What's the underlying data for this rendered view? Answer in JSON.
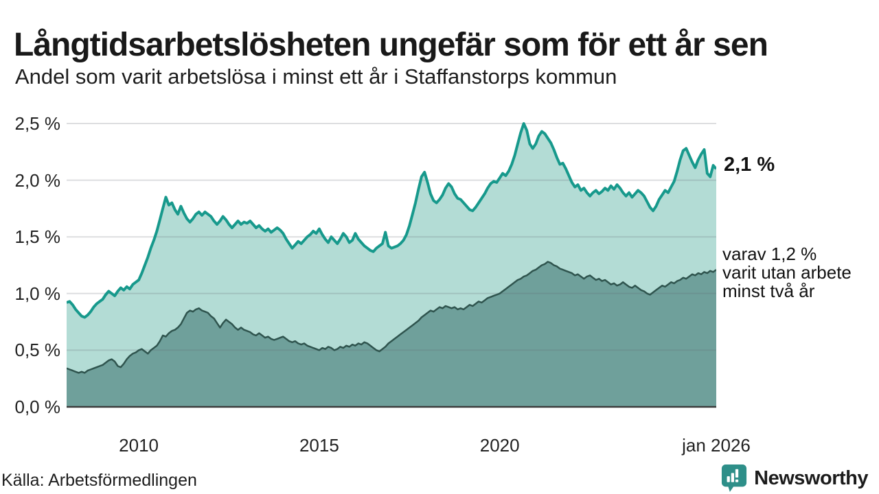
{
  "header": {
    "title": "Långtidsarbetslösheten ungefär som för ett år sen",
    "subtitle": "Andel som varit arbetslösa i minst ett år i Staffanstorps kommun"
  },
  "annotations": {
    "total_label": "2,1 %",
    "secondary_line1": "varav 1,2 %",
    "secondary_line2": "varit utan arbete",
    "secondary_line3": "minst två år"
  },
  "footer": {
    "source": "Källa: Arbetsförmedlingen",
    "brand_name": "Newsworthy"
  },
  "colors": {
    "total_line": "#17998c",
    "total_fill": "#b3dcd5",
    "secondary_line": "#2f544e",
    "secondary_fill": "#6fa09b",
    "gridline_overlay": "rgba(100,105,115,0.22)",
    "baseline": "#3c3c3c",
    "brand_teal": "#2e8f89",
    "text": "#1c1c1c"
  },
  "chart_data": {
    "type": "area",
    "title": "Långtidsarbetslösheten ungefär som för ett år sen",
    "subtitle": "Andel som varit arbetslösa i minst ett år i Staffanstorps kommun",
    "unit": "percent",
    "interval": "monthly",
    "start": "2008-01",
    "end": "2026-01",
    "ylim": [
      0,
      2.5
    ],
    "grid": true,
    "legend_position": "right-annotations",
    "y_ticks": [
      {
        "value": 2.5,
        "label": "2,5 %"
      },
      {
        "value": 2.0,
        "label": "2,0 %"
      },
      {
        "value": 1.5,
        "label": "1,5 %"
      },
      {
        "value": 1.0,
        "label": "1,0 %"
      },
      {
        "value": 0.5,
        "label": "0,5 %"
      },
      {
        "value": 0.0,
        "label": "0,0 %"
      }
    ],
    "x_ticks": [
      {
        "label": "2010",
        "pos": 0.1111
      },
      {
        "label": "2015",
        "pos": 0.3889
      },
      {
        "label": "2020",
        "pos": 0.6667
      },
      {
        "label": "jan 2026",
        "pos": 1.0
      }
    ],
    "series": [
      {
        "name": "Arbetslösa minst ett år",
        "end_value_label": "2,1 %",
        "color": "#17998c",
        "fill": "#b3dcd5",
        "stroke_width": 4,
        "values": [
          0.92,
          0.93,
          0.9,
          0.86,
          0.83,
          0.8,
          0.79,
          0.81,
          0.84,
          0.88,
          0.91,
          0.93,
          0.95,
          0.99,
          1.02,
          1.0,
          0.98,
          1.02,
          1.05,
          1.03,
          1.06,
          1.04,
          1.08,
          1.1,
          1.12,
          1.18,
          1.25,
          1.32,
          1.4,
          1.47,
          1.55,
          1.65,
          1.75,
          1.85,
          1.78,
          1.8,
          1.74,
          1.7,
          1.77,
          1.71,
          1.66,
          1.63,
          1.66,
          1.7,
          1.72,
          1.69,
          1.72,
          1.7,
          1.68,
          1.64,
          1.61,
          1.64,
          1.68,
          1.65,
          1.61,
          1.58,
          1.61,
          1.64,
          1.61,
          1.63,
          1.62,
          1.64,
          1.61,
          1.58,
          1.6,
          1.57,
          1.55,
          1.57,
          1.54,
          1.56,
          1.58,
          1.56,
          1.53,
          1.48,
          1.44,
          1.4,
          1.43,
          1.46,
          1.44,
          1.47,
          1.5,
          1.52,
          1.55,
          1.53,
          1.57,
          1.52,
          1.48,
          1.45,
          1.5,
          1.47,
          1.44,
          1.48,
          1.53,
          1.5,
          1.45,
          1.47,
          1.53,
          1.48,
          1.45,
          1.42,
          1.4,
          1.38,
          1.37,
          1.4,
          1.42,
          1.44,
          1.54,
          1.42,
          1.4,
          1.41,
          1.42,
          1.44,
          1.47,
          1.52,
          1.6,
          1.7,
          1.8,
          1.92,
          2.03,
          2.07,
          1.98,
          1.88,
          1.82,
          1.8,
          1.83,
          1.87,
          1.93,
          1.97,
          1.94,
          1.88,
          1.84,
          1.83,
          1.8,
          1.77,
          1.74,
          1.73,
          1.76,
          1.8,
          1.84,
          1.88,
          1.93,
          1.97,
          1.99,
          1.98,
          2.02,
          2.06,
          2.04,
          2.08,
          2.14,
          2.22,
          2.32,
          2.42,
          2.5,
          2.44,
          2.32,
          2.28,
          2.32,
          2.39,
          2.43,
          2.41,
          2.37,
          2.33,
          2.27,
          2.2,
          2.14,
          2.15,
          2.1,
          2.04,
          1.98,
          1.94,
          1.96,
          1.91,
          1.93,
          1.89,
          1.86,
          1.89,
          1.91,
          1.88,
          1.9,
          1.93,
          1.91,
          1.95,
          1.92,
          1.96,
          1.93,
          1.89,
          1.86,
          1.89,
          1.85,
          1.88,
          1.91,
          1.89,
          1.86,
          1.81,
          1.76,
          1.73,
          1.77,
          1.83,
          1.87,
          1.91,
          1.89,
          1.94,
          1.99,
          2.08,
          2.18,
          2.26,
          2.28,
          2.22,
          2.16,
          2.11,
          2.18,
          2.23,
          2.27,
          2.06,
          2.03,
          2.13,
          2.1
        ]
      },
      {
        "name": "varav utan arbete minst två år",
        "end_value_label": "1,2 %",
        "color": "#2f544e",
        "fill": "#6fa09b",
        "stroke_width": 2.5,
        "values": [
          0.34,
          0.33,
          0.32,
          0.31,
          0.3,
          0.31,
          0.3,
          0.32,
          0.33,
          0.34,
          0.35,
          0.36,
          0.37,
          0.39,
          0.41,
          0.42,
          0.4,
          0.36,
          0.35,
          0.38,
          0.42,
          0.45,
          0.47,
          0.48,
          0.5,
          0.51,
          0.49,
          0.47,
          0.5,
          0.52,
          0.54,
          0.58,
          0.63,
          0.62,
          0.65,
          0.67,
          0.68,
          0.7,
          0.73,
          0.78,
          0.83,
          0.85,
          0.84,
          0.86,
          0.87,
          0.85,
          0.84,
          0.83,
          0.8,
          0.78,
          0.74,
          0.7,
          0.74,
          0.77,
          0.75,
          0.73,
          0.7,
          0.68,
          0.7,
          0.68,
          0.67,
          0.66,
          0.64,
          0.63,
          0.65,
          0.63,
          0.61,
          0.62,
          0.6,
          0.59,
          0.6,
          0.61,
          0.62,
          0.6,
          0.58,
          0.57,
          0.58,
          0.56,
          0.55,
          0.56,
          0.54,
          0.53,
          0.52,
          0.51,
          0.5,
          0.52,
          0.51,
          0.53,
          0.52,
          0.5,
          0.51,
          0.53,
          0.52,
          0.54,
          0.53,
          0.55,
          0.54,
          0.56,
          0.55,
          0.57,
          0.56,
          0.54,
          0.52,
          0.5,
          0.49,
          0.51,
          0.53,
          0.56,
          0.58,
          0.6,
          0.62,
          0.64,
          0.66,
          0.68,
          0.7,
          0.72,
          0.74,
          0.76,
          0.79,
          0.81,
          0.83,
          0.85,
          0.84,
          0.86,
          0.88,
          0.87,
          0.89,
          0.88,
          0.87,
          0.88,
          0.86,
          0.87,
          0.86,
          0.88,
          0.9,
          0.89,
          0.91,
          0.93,
          0.92,
          0.94,
          0.96,
          0.97,
          0.98,
          0.99,
          1.0,
          1.02,
          1.04,
          1.06,
          1.08,
          1.1,
          1.12,
          1.13,
          1.15,
          1.16,
          1.18,
          1.2,
          1.21,
          1.23,
          1.25,
          1.26,
          1.28,
          1.27,
          1.25,
          1.24,
          1.22,
          1.21,
          1.2,
          1.19,
          1.18,
          1.16,
          1.17,
          1.15,
          1.13,
          1.15,
          1.16,
          1.14,
          1.12,
          1.13,
          1.11,
          1.12,
          1.1,
          1.08,
          1.09,
          1.07,
          1.08,
          1.1,
          1.08,
          1.06,
          1.05,
          1.07,
          1.05,
          1.03,
          1.02,
          1.0,
          0.99,
          1.01,
          1.03,
          1.05,
          1.07,
          1.06,
          1.08,
          1.1,
          1.09,
          1.11,
          1.12,
          1.14,
          1.13,
          1.15,
          1.17,
          1.16,
          1.18,
          1.17,
          1.19,
          1.18,
          1.2,
          1.19,
          1.21
        ]
      }
    ]
  }
}
